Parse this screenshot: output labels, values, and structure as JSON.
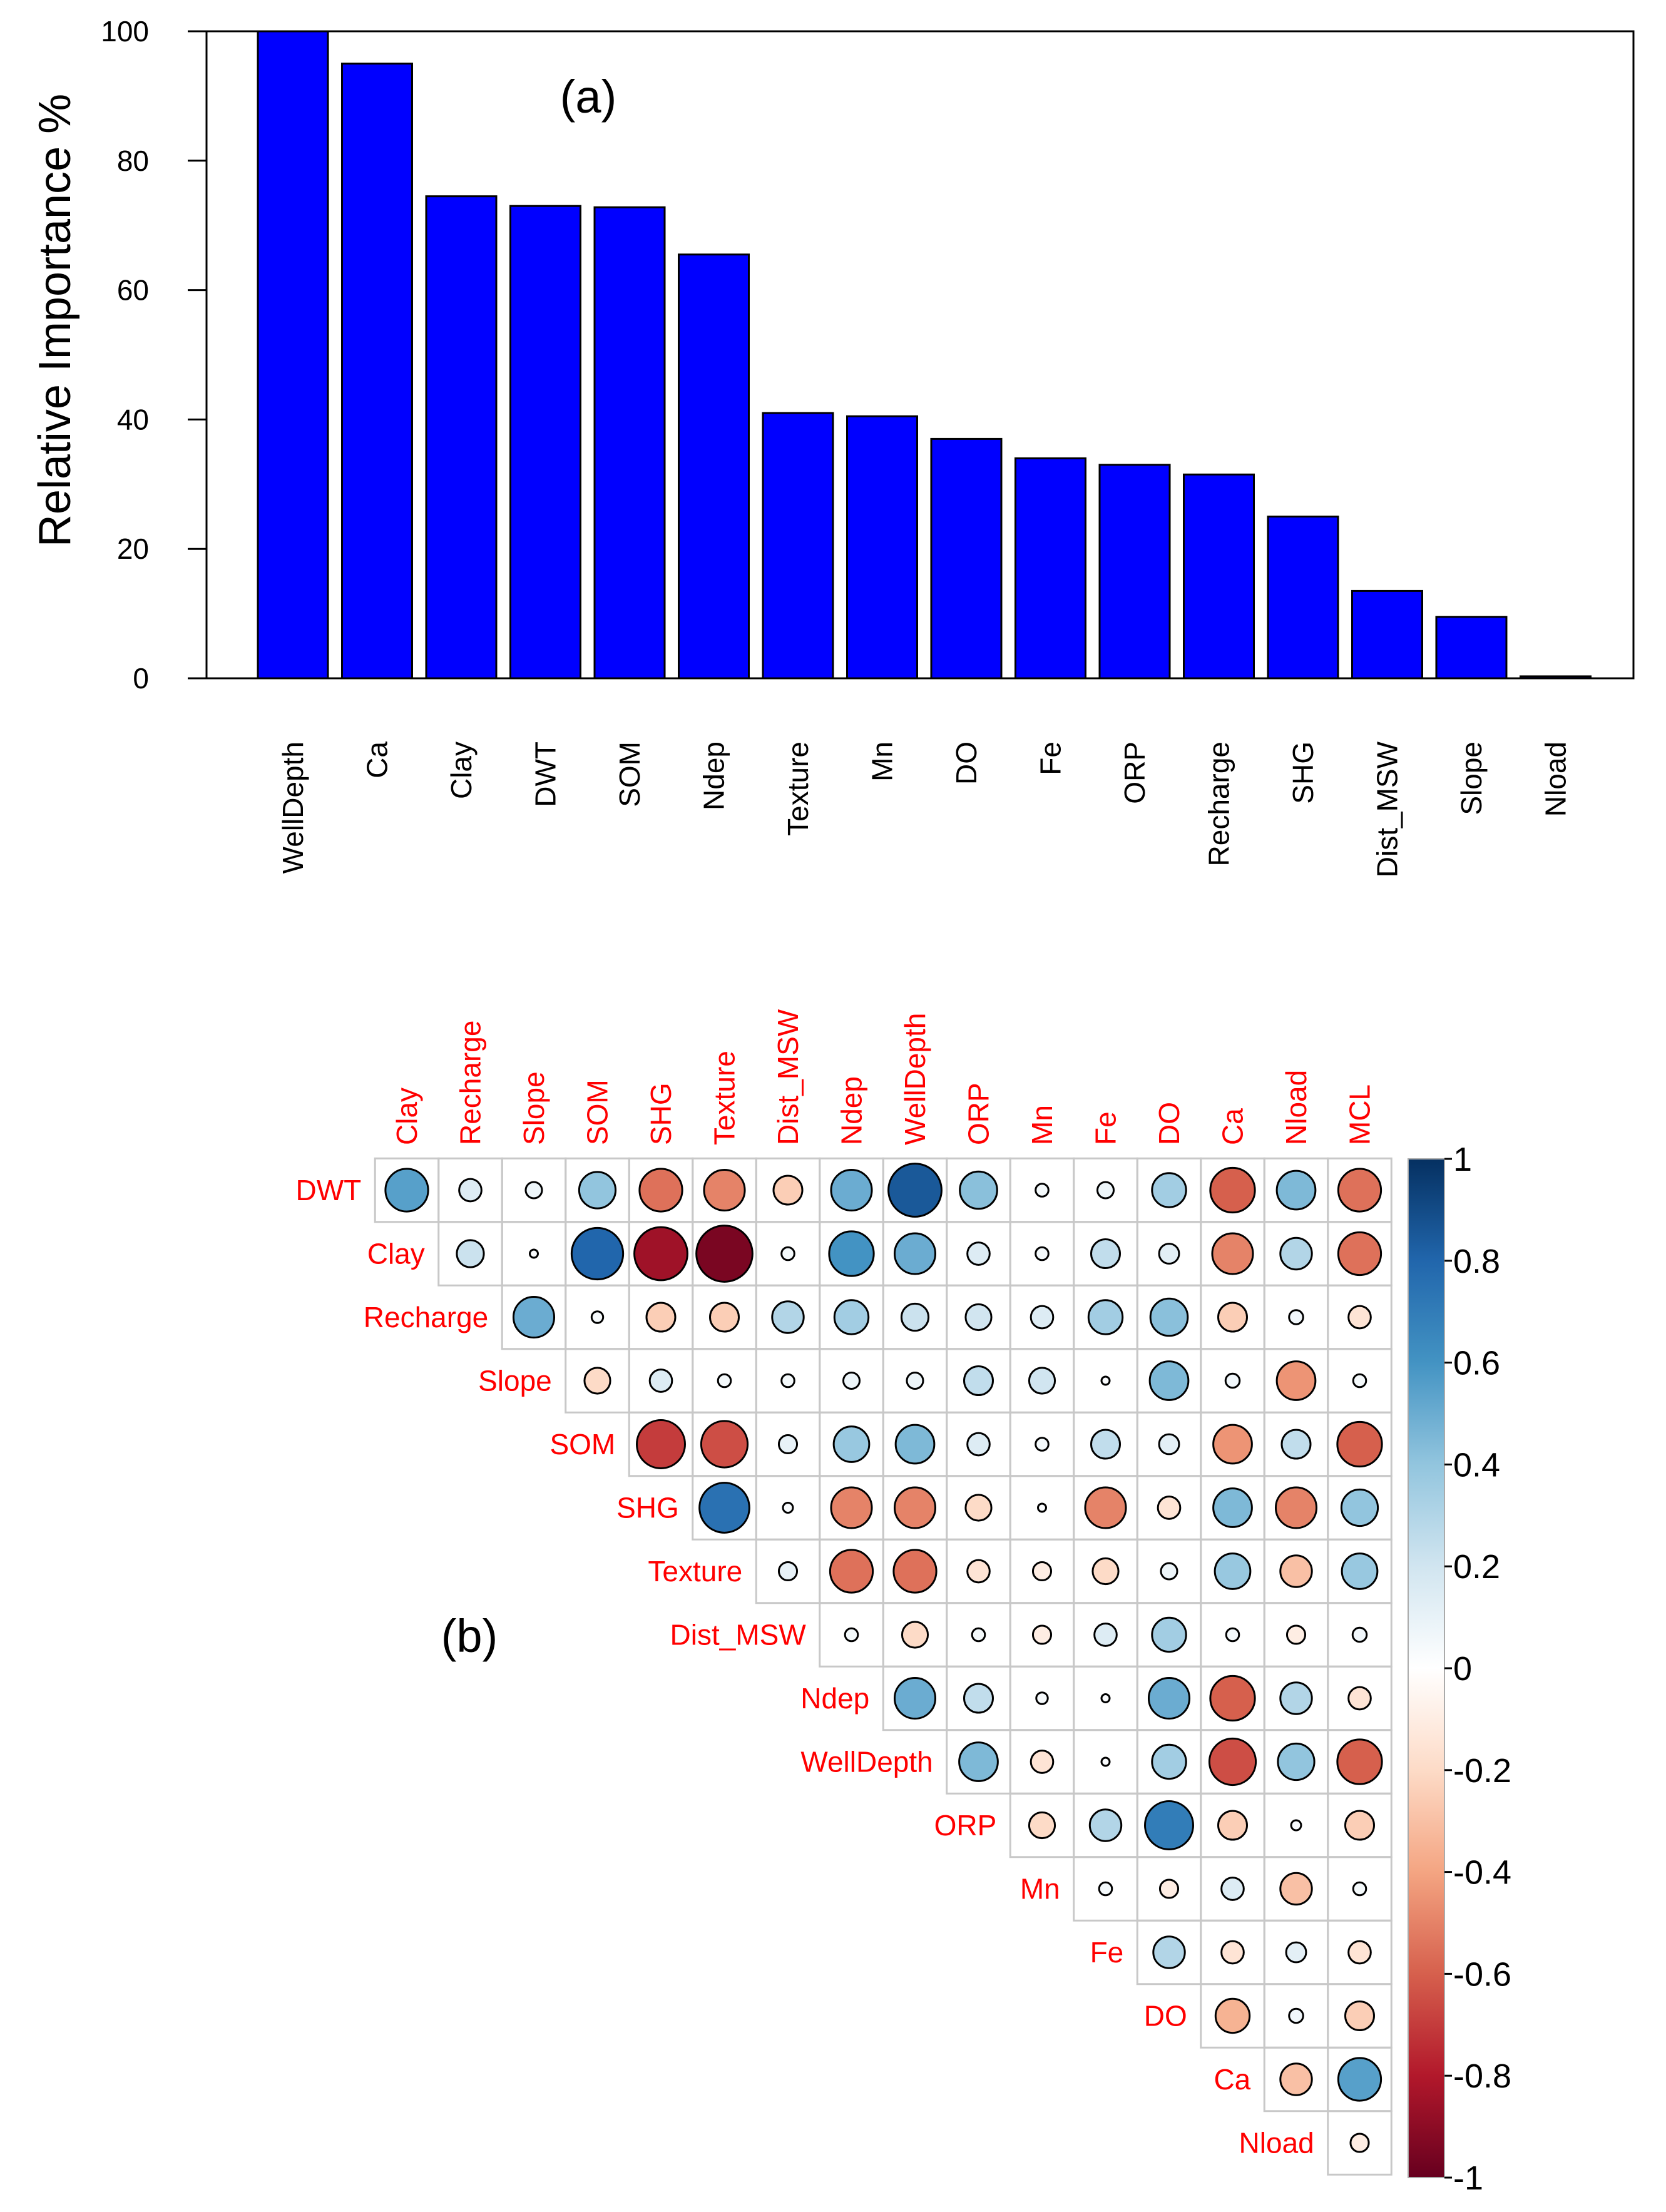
{
  "chart_data": [
    {
      "type": "bar",
      "panel_label": "(a)",
      "title": "",
      "xlabel": "",
      "ylabel": "Relative Importance %",
      "ylim": [
        0,
        100
      ],
      "yticks": [
        "0",
        "20",
        "40",
        "60",
        "80",
        "100"
      ],
      "bar_color": "#0000ff",
      "categories": [
        "WellDepth",
        "Ca",
        "Clay",
        "DWT",
        "SOM",
        "Ndep",
        "Texture",
        "Mn",
        "DO",
        "Fe",
        "ORP",
        "Recharge",
        "SHG",
        "Dist_MSW",
        "Slope",
        "Nload"
      ],
      "values": [
        100,
        95,
        74.5,
        73,
        72.8,
        65.5,
        41,
        40.5,
        37,
        34,
        33,
        31.5,
        25,
        13.5,
        9.5,
        0.3
      ]
    },
    {
      "type": "heatmap",
      "panel_label": "(b)",
      "subtype": "correlation-circles-upper-triangle",
      "col_labels": [
        "Clay",
        "Recharge",
        "Slope",
        "SOM",
        "SHG",
        "Texture",
        "Dist_MSW",
        "Ndep",
        "WellDepth",
        "ORP",
        "Mn",
        "Fe",
        "DO",
        "Ca",
        "Nload",
        "MCL"
      ],
      "row_labels": [
        "DWT",
        "Clay",
        "Recharge",
        "Slope",
        "SOM",
        "SHG",
        "Texture",
        "Dist_MSW",
        "Ndep",
        "WellDepth",
        "ORP",
        "Mn",
        "Fe",
        "DO",
        "Ca",
        "Nload"
      ],
      "matrix": [
        [
          0.55,
          0.15,
          0.08,
          0.4,
          -0.55,
          -0.5,
          -0.25,
          0.5,
          0.85,
          0.42,
          0.05,
          0.08,
          0.35,
          -0.6,
          0.45,
          -0.55
        ],
        [
          0.22,
          0.02,
          0.8,
          -0.85,
          -0.95,
          0.05,
          0.6,
          0.5,
          0.15,
          0.05,
          0.25,
          0.12,
          -0.5,
          0.3,
          -0.55
        ],
        [
          0.5,
          0.04,
          -0.25,
          -0.25,
          0.3,
          0.35,
          0.22,
          0.2,
          0.15,
          0.35,
          0.42,
          -0.25,
          0.06,
          -0.15
        ],
        [
          -0.2,
          0.15,
          0.05,
          0.05,
          0.08,
          0.08,
          0.25,
          0.2,
          0.02,
          0.45,
          0.06,
          -0.45,
          0.05
        ],
        [
          -0.7,
          -0.65,
          0.1,
          0.38,
          0.45,
          0.15,
          0.05,
          0.25,
          0.12,
          -0.45,
          0.25,
          -0.6
        ],
        [
          0.75,
          0.03,
          -0.5,
          -0.5,
          -0.2,
          0.02,
          -0.5,
          -0.15,
          0.45,
          -0.5,
          0.4
        ],
        [
          0.1,
          -0.55,
          -0.55,
          -0.15,
          -0.1,
          -0.2,
          0.08,
          0.38,
          -0.3,
          0.38
        ],
        [
          0.05,
          -0.2,
          0.05,
          -0.1,
          0.15,
          0.35,
          0.05,
          -0.1,
          0.06
        ],
        [
          0.5,
          0.25,
          0.04,
          0.02,
          0.5,
          -0.6,
          0.3,
          -0.15
        ],
        [
          0.45,
          -0.15,
          0.02,
          0.35,
          -0.65,
          0.4,
          -0.6
        ],
        [
          -0.2,
          0.3,
          0.7,
          -0.25,
          0.03,
          -0.25
        ],
        [
          0.05,
          -0.1,
          0.15,
          -0.3,
          0.05
        ],
        [
          0.3,
          -0.15,
          0.12,
          -0.15
        ],
        [
          -0.35,
          0.06,
          -0.25
        ],
        [
          -0.3,
          0.55
        ],
        [
          -0.1
        ]
      ],
      "colorbar": {
        "ticks": [
          "1",
          "0.8",
          "0.6",
          "0.4",
          "0.2",
          "0",
          "-0.2",
          "-0.4",
          "-0.6",
          "-0.8",
          "-1"
        ],
        "range": [
          -1,
          1
        ],
        "colors": [
          "#67001f",
          "#b2182b",
          "#d6604d",
          "#f4a582",
          "#fddbc7",
          "#ffffff",
          "#d1e5f0",
          "#92c5de",
          "#4393c3",
          "#2166ac",
          "#053061"
        ]
      }
    }
  ]
}
